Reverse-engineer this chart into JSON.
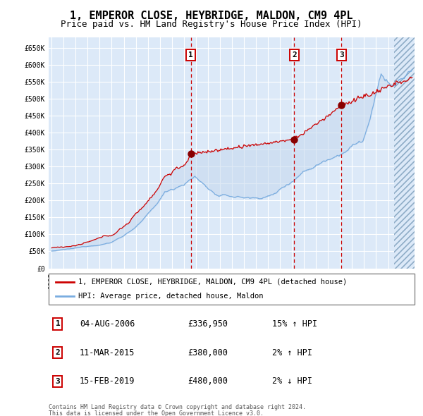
{
  "title": "1, EMPEROR CLOSE, HEYBRIDGE, MALDON, CM9 4PL",
  "subtitle": "Price paid vs. HM Land Registry's House Price Index (HPI)",
  "title_fontsize": 11,
  "subtitle_fontsize": 9,
  "ylim": [
    0,
    680000
  ],
  "yticks": [
    0,
    50000,
    100000,
    150000,
    200000,
    250000,
    300000,
    350000,
    400000,
    450000,
    500000,
    550000,
    600000,
    650000
  ],
  "ytick_labels": [
    "£0",
    "£50K",
    "£100K",
    "£150K",
    "£200K",
    "£250K",
    "£300K",
    "£350K",
    "£400K",
    "£450K",
    "£500K",
    "£550K",
    "£600K",
    "£650K"
  ],
  "background_color": "#dce9f8",
  "grid_color": "#ffffff",
  "sale1_date": 2006.58,
  "sale1_price": 336950,
  "sale2_date": 2015.19,
  "sale2_price": 380000,
  "sale3_date": 2019.12,
  "sale3_price": 480000,
  "red_line_color": "#cc0000",
  "blue_line_color": "#7aade0",
  "marker_color": "#880000",
  "legend_red_label": "1, EMPEROR CLOSE, HEYBRIDGE, MALDON, CM9 4PL (detached house)",
  "legend_blue_label": "HPI: Average price, detached house, Maldon",
  "table_rows": [
    {
      "num": "1",
      "date": "04-AUG-2006",
      "price": "£336,950",
      "hpi": "15% ↑ HPI"
    },
    {
      "num": "2",
      "date": "11-MAR-2015",
      "price": "£380,000",
      "hpi": "2% ↑ HPI"
    },
    {
      "num": "3",
      "date": "15-FEB-2019",
      "price": "£480,000",
      "hpi": "2% ↓ HPI"
    }
  ],
  "footer1": "Contains HM Land Registry data © Crown copyright and database right 2024.",
  "footer2": "This data is licensed under the Open Government Licence v3.0."
}
